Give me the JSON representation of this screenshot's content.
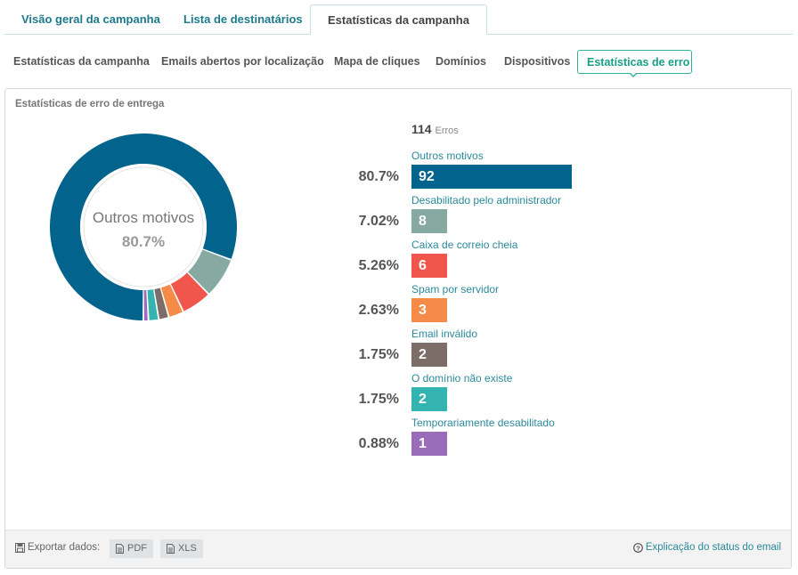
{
  "top_tabs": [
    {
      "label": "Visão geral da campanha"
    },
    {
      "label": "Lista de destinatários"
    },
    {
      "label": "Estatísticas da campanha"
    }
  ],
  "sub_tabs": [
    {
      "label": "Estatísticas da campanha"
    },
    {
      "label": "Emails abertos por localização"
    },
    {
      "label": "Mapa de cliques"
    },
    {
      "label": "Domínios"
    },
    {
      "label": "Dispositivos"
    },
    {
      "label": "Estatísticas de erro"
    }
  ],
  "panel": {
    "title": "Estatísticas de erro de entrega",
    "donut_center": {
      "label": "Outros motivos",
      "value": "80.7%"
    },
    "total": {
      "value": "114",
      "unit": "Erros"
    }
  },
  "chart_data": {
    "type": "pie",
    "total": 114,
    "categories": [
      "Outros motivos",
      "Desabilitado pelo administrador",
      "Caixa de correio cheia",
      "Spam por servidor",
      "Email inválido",
      "O domínio não existe",
      "Temporariamente desabilitado"
    ],
    "values": [
      92,
      8,
      6,
      3,
      2,
      2,
      1
    ],
    "percentages": [
      "80.7%",
      "7.02%",
      "5.26%",
      "2.63%",
      "1.75%",
      "1.75%",
      "0.88%"
    ],
    "colors": [
      "#02648c",
      "#86aaa2",
      "#f1564d",
      "#f58b49",
      "#7d6d68",
      "#34b4b1",
      "#9b6cb9"
    ]
  },
  "footer": {
    "export_label": "Exportar dados:",
    "pdf_label": "PDF",
    "xls_label": "XLS",
    "explain_label": "Explicação do status do email"
  }
}
